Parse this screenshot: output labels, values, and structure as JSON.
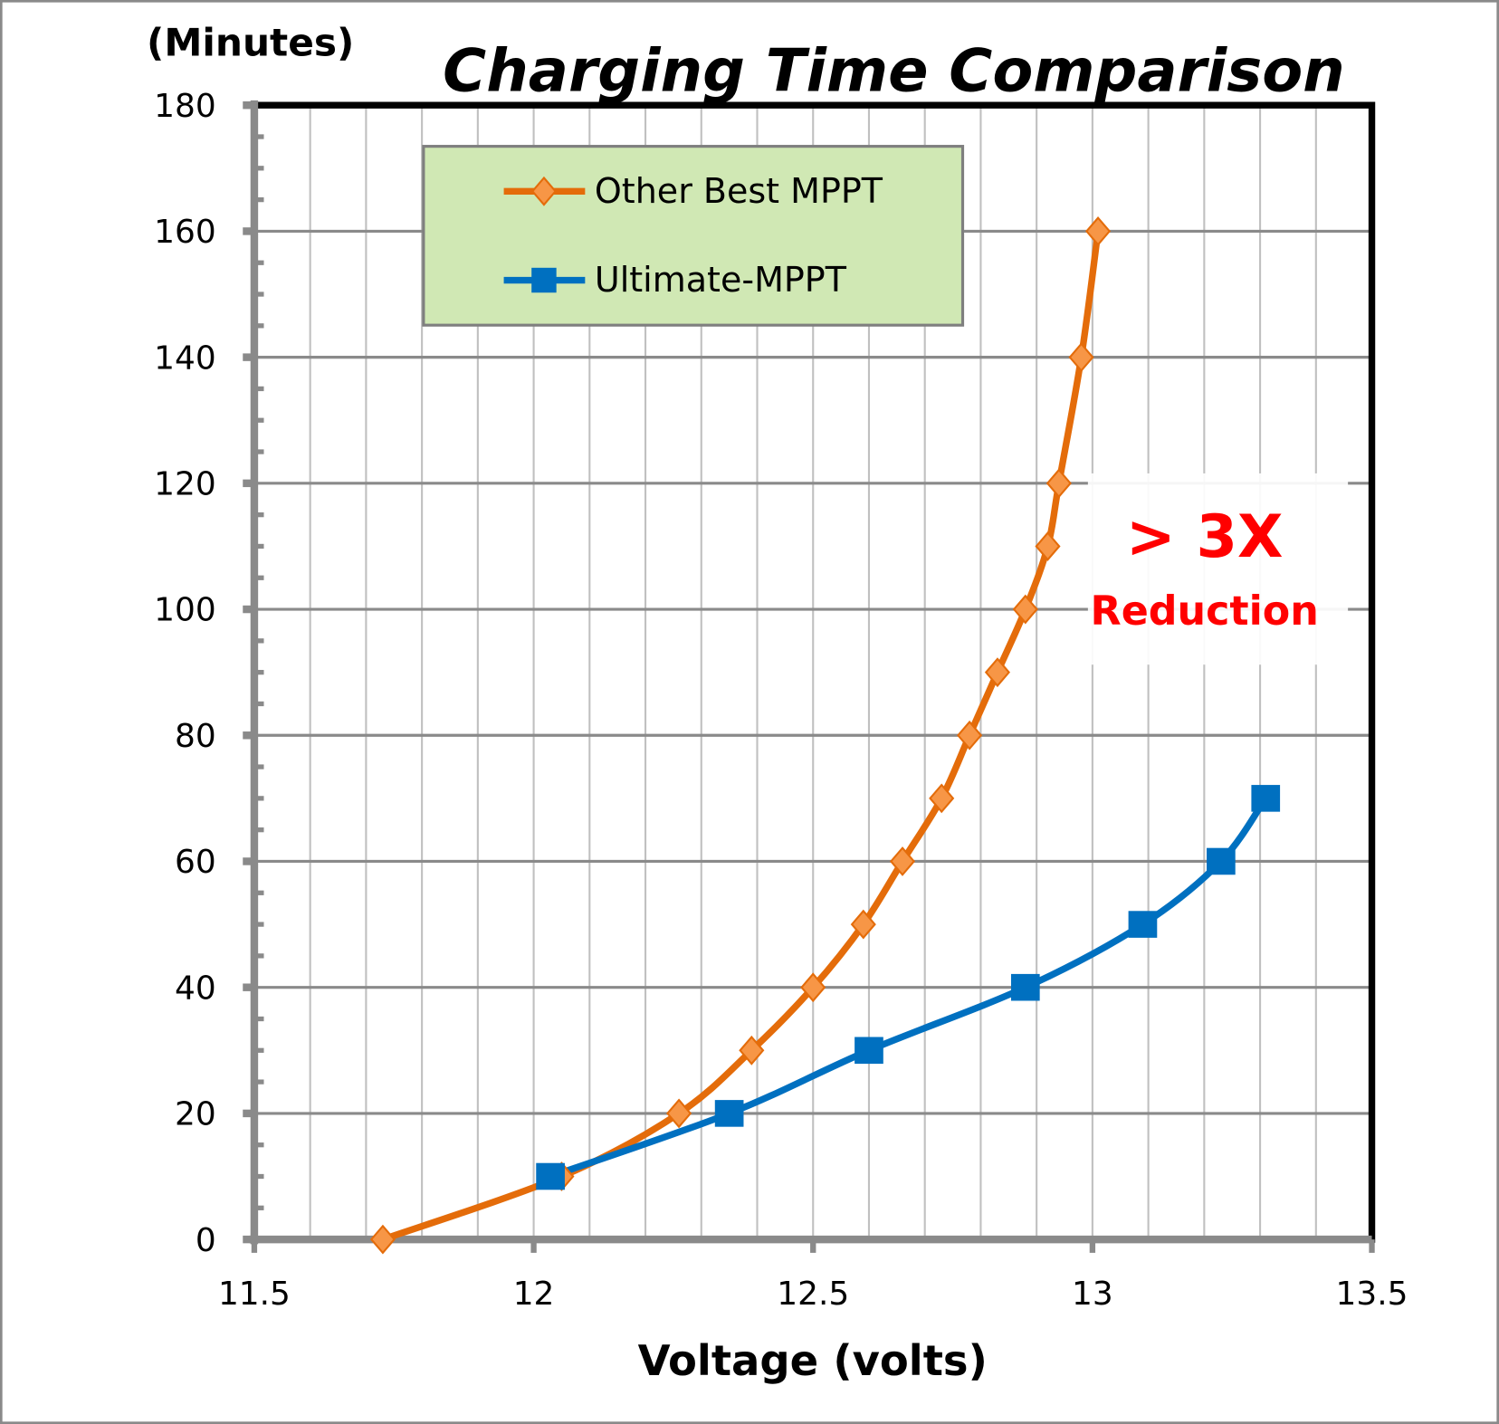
{
  "chart_data": {
    "type": "line",
    "title": "Charging Time Comparison",
    "xlabel": "Voltage (volts)",
    "ylabel": "(Minutes)",
    "xlim": [
      11.5,
      13.5
    ],
    "ylim": [
      0,
      180
    ],
    "xticks": [
      "11.5",
      "12",
      "12.5",
      "13",
      "13.5"
    ],
    "yticks": [
      "0",
      "20",
      "40",
      "60",
      "80",
      "100",
      "120",
      "140",
      "160",
      "180"
    ],
    "grid": true,
    "legend_position": "top-left",
    "series": [
      {
        "name": "Other Best MPPT",
        "color": "#E46C0A",
        "marker_fill": "#F79646",
        "marker": "diamond",
        "x": [
          11.73,
          12.05,
          12.26,
          12.39,
          12.5,
          12.59,
          12.66,
          12.73,
          12.78,
          12.83,
          12.88,
          12.92,
          12.94,
          12.98,
          13.01
        ],
        "y": [
          0,
          10,
          20,
          30,
          40,
          50,
          60,
          70,
          80,
          90,
          100,
          110,
          120,
          140,
          160
        ]
      },
      {
        "name": "Ultimate-MPPT",
        "color": "#0070C0",
        "marker_fill": "#0070C0",
        "marker": "square",
        "x": [
          12.03,
          12.35,
          12.6,
          12.88,
          13.09,
          13.23,
          13.31
        ],
        "y": [
          10,
          20,
          30,
          40,
          50,
          60,
          70
        ]
      }
    ],
    "annotations": [
      {
        "text": "> 3X",
        "color": "#FF0000"
      },
      {
        "text": "Reduction",
        "color": "#FF0000"
      }
    ]
  }
}
